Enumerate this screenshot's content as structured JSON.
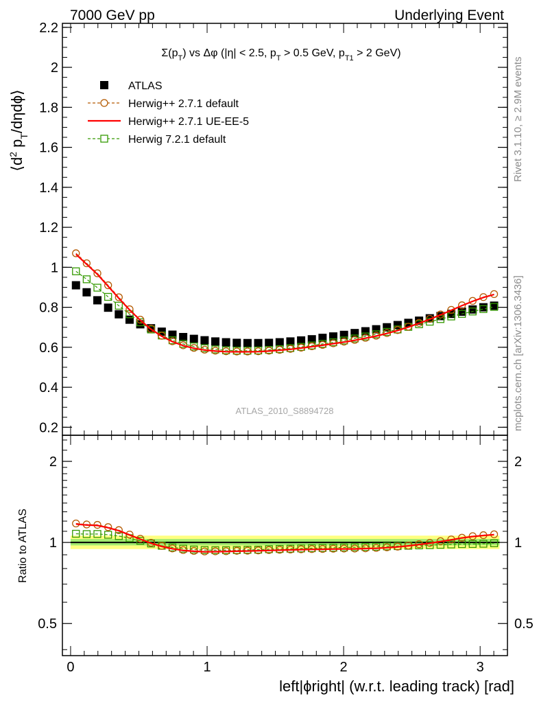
{
  "header": {
    "left": "7000 GeV pp",
    "right": "Underlying Event"
  },
  "plot_title": "Σ(p_T) vs Δφ (|η| < 2.5, p_T > 0.5 GeV, p_T1 > 2 GeV)",
  "side_text": {
    "rivet": "Rivet 3.1.10, ≥ 2.9M events",
    "mcplots": "mcplots.cern.ch [arXiv:1306.3436]"
  },
  "watermark": "ATLAS_2010_S8894728",
  "colors": {
    "data": "#000000",
    "herwig_default": "#b35900",
    "herwig_ueee5": "#ff0000",
    "herwig7": "#339900",
    "band_yellow": "#ffff80",
    "band_green": "#66dd66"
  },
  "chart_data": [
    {
      "type": "scatter",
      "panel": "main",
      "xlabel": "left|ϕright| (w.r.t. leading track) [rad]",
      "ylabel": "⟨d² p_T/dηdϕ⟩",
      "xlim": [
        -0.06,
        3.2
      ],
      "ylim": [
        0.16,
        2.22
      ],
      "y_ticks": [
        0.2,
        0.4,
        0.6,
        0.8,
        1,
        1.2,
        1.4,
        1.6,
        1.8,
        2,
        2.2
      ],
      "y_tick_labels": [
        "0.2",
        "0.4",
        "0.6",
        "0.8",
        "1",
        "1.2",
        "1.4",
        "1.6",
        "1.8",
        "2",
        "2.2"
      ],
      "legend_position": "top-left",
      "x": [
        0.0393,
        0.1178,
        0.1963,
        0.2749,
        0.3534,
        0.432,
        0.5105,
        0.589,
        0.6676,
        0.7461,
        0.8247,
        0.9032,
        0.9817,
        1.0603,
        1.1388,
        1.2174,
        1.2959,
        1.3744,
        1.453,
        1.5315,
        1.6101,
        1.6886,
        1.7671,
        1.8457,
        1.9242,
        2.0028,
        2.0813,
        2.1598,
        2.2384,
        2.3169,
        2.3955,
        2.474,
        2.5525,
        2.6311,
        2.7096,
        2.7882,
        2.8667,
        2.9452,
        3.0238,
        3.1023
      ],
      "series": [
        {
          "name": "ATLAS",
          "style": "square-filled",
          "values": [
            0.91,
            0.875,
            0.835,
            0.798,
            0.765,
            0.738,
            0.715,
            0.695,
            0.678,
            0.663,
            0.651,
            0.642,
            0.635,
            0.629,
            0.625,
            0.622,
            0.621,
            0.621,
            0.622,
            0.625,
            0.629,
            0.634,
            0.64,
            0.647,
            0.654,
            0.662,
            0.671,
            0.68,
            0.69,
            0.7,
            0.711,
            0.722,
            0.733,
            0.745,
            0.756,
            0.767,
            0.778,
            0.789,
            0.8,
            0.808
          ]
        },
        {
          "name": "Herwig++ 2.7.1 default",
          "style": "circle-open-dashed",
          "values": [
            1.07,
            1.02,
            0.97,
            0.91,
            0.85,
            0.79,
            0.738,
            0.693,
            0.658,
            0.63,
            0.61,
            0.597,
            0.588,
            0.583,
            0.58,
            0.579,
            0.579,
            0.58,
            0.583,
            0.587,
            0.592,
            0.598,
            0.605,
            0.612,
            0.62,
            0.628,
            0.637,
            0.647,
            0.658,
            0.671,
            0.686,
            0.703,
            0.722,
            0.742,
            0.764,
            0.787,
            0.81,
            0.832,
            0.851,
            0.866
          ]
        },
        {
          "name": "Herwig++ 2.7.1 UE-EE-5",
          "style": "line-solid",
          "values": [
            1.065,
            1.015,
            0.965,
            0.905,
            0.845,
            0.787,
            0.735,
            0.69,
            0.655,
            0.628,
            0.608,
            0.595,
            0.586,
            0.581,
            0.578,
            0.577,
            0.577,
            0.578,
            0.581,
            0.585,
            0.59,
            0.596,
            0.603,
            0.61,
            0.618,
            0.626,
            0.635,
            0.645,
            0.656,
            0.669,
            0.684,
            0.701,
            0.72,
            0.74,
            0.762,
            0.785,
            0.808,
            0.83,
            0.849,
            0.864
          ]
        },
        {
          "name": "Herwig 7.2.1 default",
          "style": "square-open-dashed",
          "values": [
            0.98,
            0.94,
            0.898,
            0.852,
            0.808,
            0.765,
            0.725,
            0.689,
            0.659,
            0.635,
            0.617,
            0.604,
            0.595,
            0.589,
            0.585,
            0.583,
            0.583,
            0.584,
            0.587,
            0.591,
            0.596,
            0.602,
            0.609,
            0.617,
            0.625,
            0.634,
            0.644,
            0.654,
            0.665,
            0.677,
            0.689,
            0.702,
            0.715,
            0.728,
            0.741,
            0.754,
            0.767,
            0.779,
            0.791,
            0.802
          ]
        }
      ]
    },
    {
      "type": "scatter",
      "panel": "ratio",
      "xlabel": "left|ϕright| (w.r.t. leading track) [rad]",
      "ylabel": "Ratio to ATLAS",
      "xlim": [
        -0.06,
        3.2
      ],
      "ylim": [
        0.38,
        2.5
      ],
      "y_scale": "log",
      "y_ticks": [
        0.5,
        1,
        2
      ],
      "y_tick_labels": [
        "0.5",
        "1",
        "2"
      ],
      "x_ticks": [
        0,
        1,
        2,
        3
      ],
      "x_tick_labels": [
        "0",
        "1",
        "2",
        "3"
      ],
      "bands": {
        "yellow": [
          0.945,
          1.06
        ],
        "green": [
          0.975,
          1.03
        ]
      },
      "series": [
        {
          "name": "Herwig++ 2.7.1 default",
          "style": "circle-open-dashed",
          "values": [
            1.176,
            1.166,
            1.162,
            1.14,
            1.111,
            1.07,
            1.032,
            0.997,
            0.971,
            0.95,
            0.937,
            0.93,
            0.926,
            0.927,
            0.928,
            0.931,
            0.932,
            0.934,
            0.937,
            0.939,
            0.941,
            0.943,
            0.945,
            0.946,
            0.948,
            0.949,
            0.949,
            0.951,
            0.954,
            0.959,
            0.965,
            0.974,
            0.985,
            0.996,
            1.011,
            1.026,
            1.041,
            1.055,
            1.064,
            1.072
          ]
        },
        {
          "name": "Herwig++ 2.7.1 UE-EE-5",
          "style": "line-solid",
          "values": [
            1.17,
            1.16,
            1.156,
            1.134,
            1.105,
            1.066,
            1.028,
            0.993,
            0.966,
            0.947,
            0.934,
            0.927,
            0.923,
            0.924,
            0.925,
            0.928,
            0.929,
            0.931,
            0.934,
            0.936,
            0.938,
            0.94,
            0.942,
            0.943,
            0.945,
            0.946,
            0.946,
            0.949,
            0.951,
            0.956,
            0.962,
            0.971,
            0.982,
            0.993,
            1.008,
            1.023,
            1.039,
            1.052,
            1.061,
            1.069
          ]
        },
        {
          "name": "Herwig 7.2.1 default",
          "style": "square-open-dashed",
          "values": [
            1.077,
            1.074,
            1.075,
            1.068,
            1.056,
            1.037,
            1.014,
            0.991,
            0.972,
            0.958,
            0.948,
            0.941,
            0.937,
            0.936,
            0.936,
            0.937,
            0.939,
            0.94,
            0.944,
            0.946,
            0.948,
            0.95,
            0.952,
            0.954,
            0.956,
            0.958,
            0.96,
            0.962,
            0.964,
            0.967,
            0.969,
            0.972,
            0.975,
            0.977,
            0.98,
            0.983,
            0.986,
            0.987,
            0.989,
            0.993
          ]
        }
      ]
    }
  ]
}
